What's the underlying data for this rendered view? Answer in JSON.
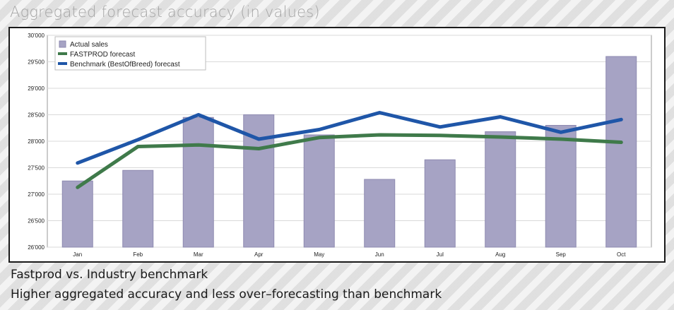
{
  "page": {
    "title": "Aggregated forecast accuracy (in values)",
    "subtitle1": "Fastprod vs. Industry benchmark",
    "subtitle2": "Higher aggregated accuracy and less over–forecasting than benchmark"
  },
  "chart_data": {
    "type": "bar",
    "title": "",
    "xlabel": "",
    "ylabel": "",
    "categories": [
      "Jan",
      "Feb",
      "Mar",
      "Apr",
      "May",
      "Jun",
      "Jul",
      "Aug",
      "Sep",
      "Oct"
    ],
    "ylim": [
      26000,
      30000
    ],
    "yticks": [
      26000,
      26500,
      27000,
      27500,
      28000,
      28500,
      29000,
      29500,
      30000
    ],
    "ytick_labels": [
      "26'000",
      "26'500",
      "27'000",
      "27'500",
      "28'000",
      "28'500",
      "29'000",
      "29'500",
      "30'000"
    ],
    "grid": true,
    "legend_position": "top-left",
    "series": [
      {
        "name": "Actual sales",
        "kind": "bar",
        "color": "#a6a3c4",
        "values": [
          27250,
          27450,
          28450,
          28500,
          28120,
          27280,
          27650,
          28180,
          28300,
          29600
        ]
      },
      {
        "name": "FASTPROD forecast",
        "kind": "line",
        "color": "#3f7a4a",
        "values": [
          27130,
          27900,
          27930,
          27860,
          28070,
          28120,
          28110,
          28080,
          28040,
          27980
        ]
      },
      {
        "name": "Benchmark (BestOfBreed) forecast",
        "kind": "line",
        "color": "#1f56a8",
        "values": [
          27590,
          28030,
          28500,
          28040,
          28220,
          28540,
          28270,
          28460,
          28170,
          28410
        ]
      }
    ]
  }
}
